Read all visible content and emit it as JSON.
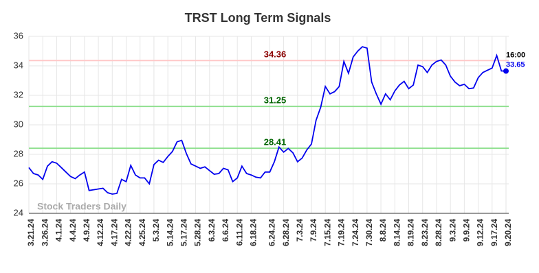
{
  "chart_data": {
    "type": "line",
    "title": "TRST Long Term Signals",
    "watermark": "Stock Traders Daily",
    "last_time": "16:00",
    "color": "#0000ee",
    "grid": true,
    "ylim": [
      24,
      36
    ],
    "yticks": [
      24,
      26,
      28,
      30,
      32,
      34,
      36
    ],
    "reference_lines": [
      {
        "value": 34.36,
        "color": "#ffc8c8",
        "label_color": "#8b0000"
      },
      {
        "value": 31.25,
        "color": "#90e090",
        "label_color": "#006400"
      },
      {
        "value": 28.41,
        "color": "#90e090",
        "label_color": "#006400"
      }
    ],
    "categories": [
      "3.21.24",
      null,
      null,
      "3.26.24",
      null,
      null,
      "4.1.24",
      null,
      null,
      "4.4.24",
      null,
      null,
      "4.9.24",
      null,
      null,
      "4.12.24",
      null,
      null,
      "4.17.24",
      null,
      null,
      "4.22.24",
      null,
      null,
      "4.25.24",
      null,
      null,
      "5.3.24",
      null,
      null,
      "5.14.24",
      null,
      null,
      "5.17.24",
      null,
      null,
      "5.28.24",
      null,
      null,
      "6.3.24",
      null,
      null,
      "6.6.24",
      null,
      null,
      "6.11.24",
      null,
      null,
      "6.18.24",
      null,
      null,
      null,
      "6.24.24",
      null,
      null,
      "6.28.24",
      null,
      null,
      "7.3.24",
      null,
      null,
      "7.9.24",
      null,
      null,
      "7.15.24",
      null,
      null,
      "7.19.24",
      null,
      null,
      "7.24.24",
      null,
      null,
      "7.30.24",
      null,
      null,
      "8.8.24",
      null,
      null,
      "8.14.24",
      null,
      null,
      "8.19.24",
      null,
      null,
      "8.23.24",
      null,
      null,
      "8.28.24",
      null,
      null,
      "9.3.24",
      null,
      null,
      "9.9.24",
      null,
      null,
      "9.12.24",
      null,
      null,
      "9.17.24",
      null,
      null,
      "9.20.24"
    ],
    "values": [
      27.1,
      26.7,
      26.6,
      26.3,
      27.2,
      27.5,
      27.4,
      27.1,
      26.8,
      26.5,
      26.35,
      26.6,
      26.8,
      25.55,
      25.6,
      25.65,
      25.7,
      25.4,
      25.3,
      25.35,
      26.3,
      26.15,
      27.25,
      26.6,
      26.4,
      26.4,
      26.0,
      27.3,
      27.6,
      27.45,
      27.85,
      28.2,
      28.85,
      28.95,
      28.05,
      27.35,
      27.2,
      27.05,
      27.15,
      26.9,
      26.65,
      26.7,
      27.05,
      26.95,
      26.15,
      26.4,
      27.2,
      26.7,
      26.6,
      26.45,
      26.4,
      26.8,
      26.8,
      27.5,
      28.5,
      28.15,
      28.4,
      28.1,
      27.5,
      27.75,
      28.3,
      28.7,
      30.3,
      31.2,
      32.6,
      32.1,
      32.25,
      32.6,
      34.3,
      33.5,
      34.6,
      35.0,
      35.3,
      35.2,
      32.9,
      32.1,
      31.4,
      32.1,
      31.7,
      32.3,
      32.7,
      32.95,
      32.45,
      32.7,
      34.05,
      33.95,
      33.55,
      34.05,
      34.3,
      34.4,
      34.05,
      33.3,
      32.9,
      32.65,
      32.75,
      32.45,
      32.5,
      33.2,
      33.55,
      33.7,
      33.85,
      34.7,
      33.65,
      33.65
    ]
  }
}
